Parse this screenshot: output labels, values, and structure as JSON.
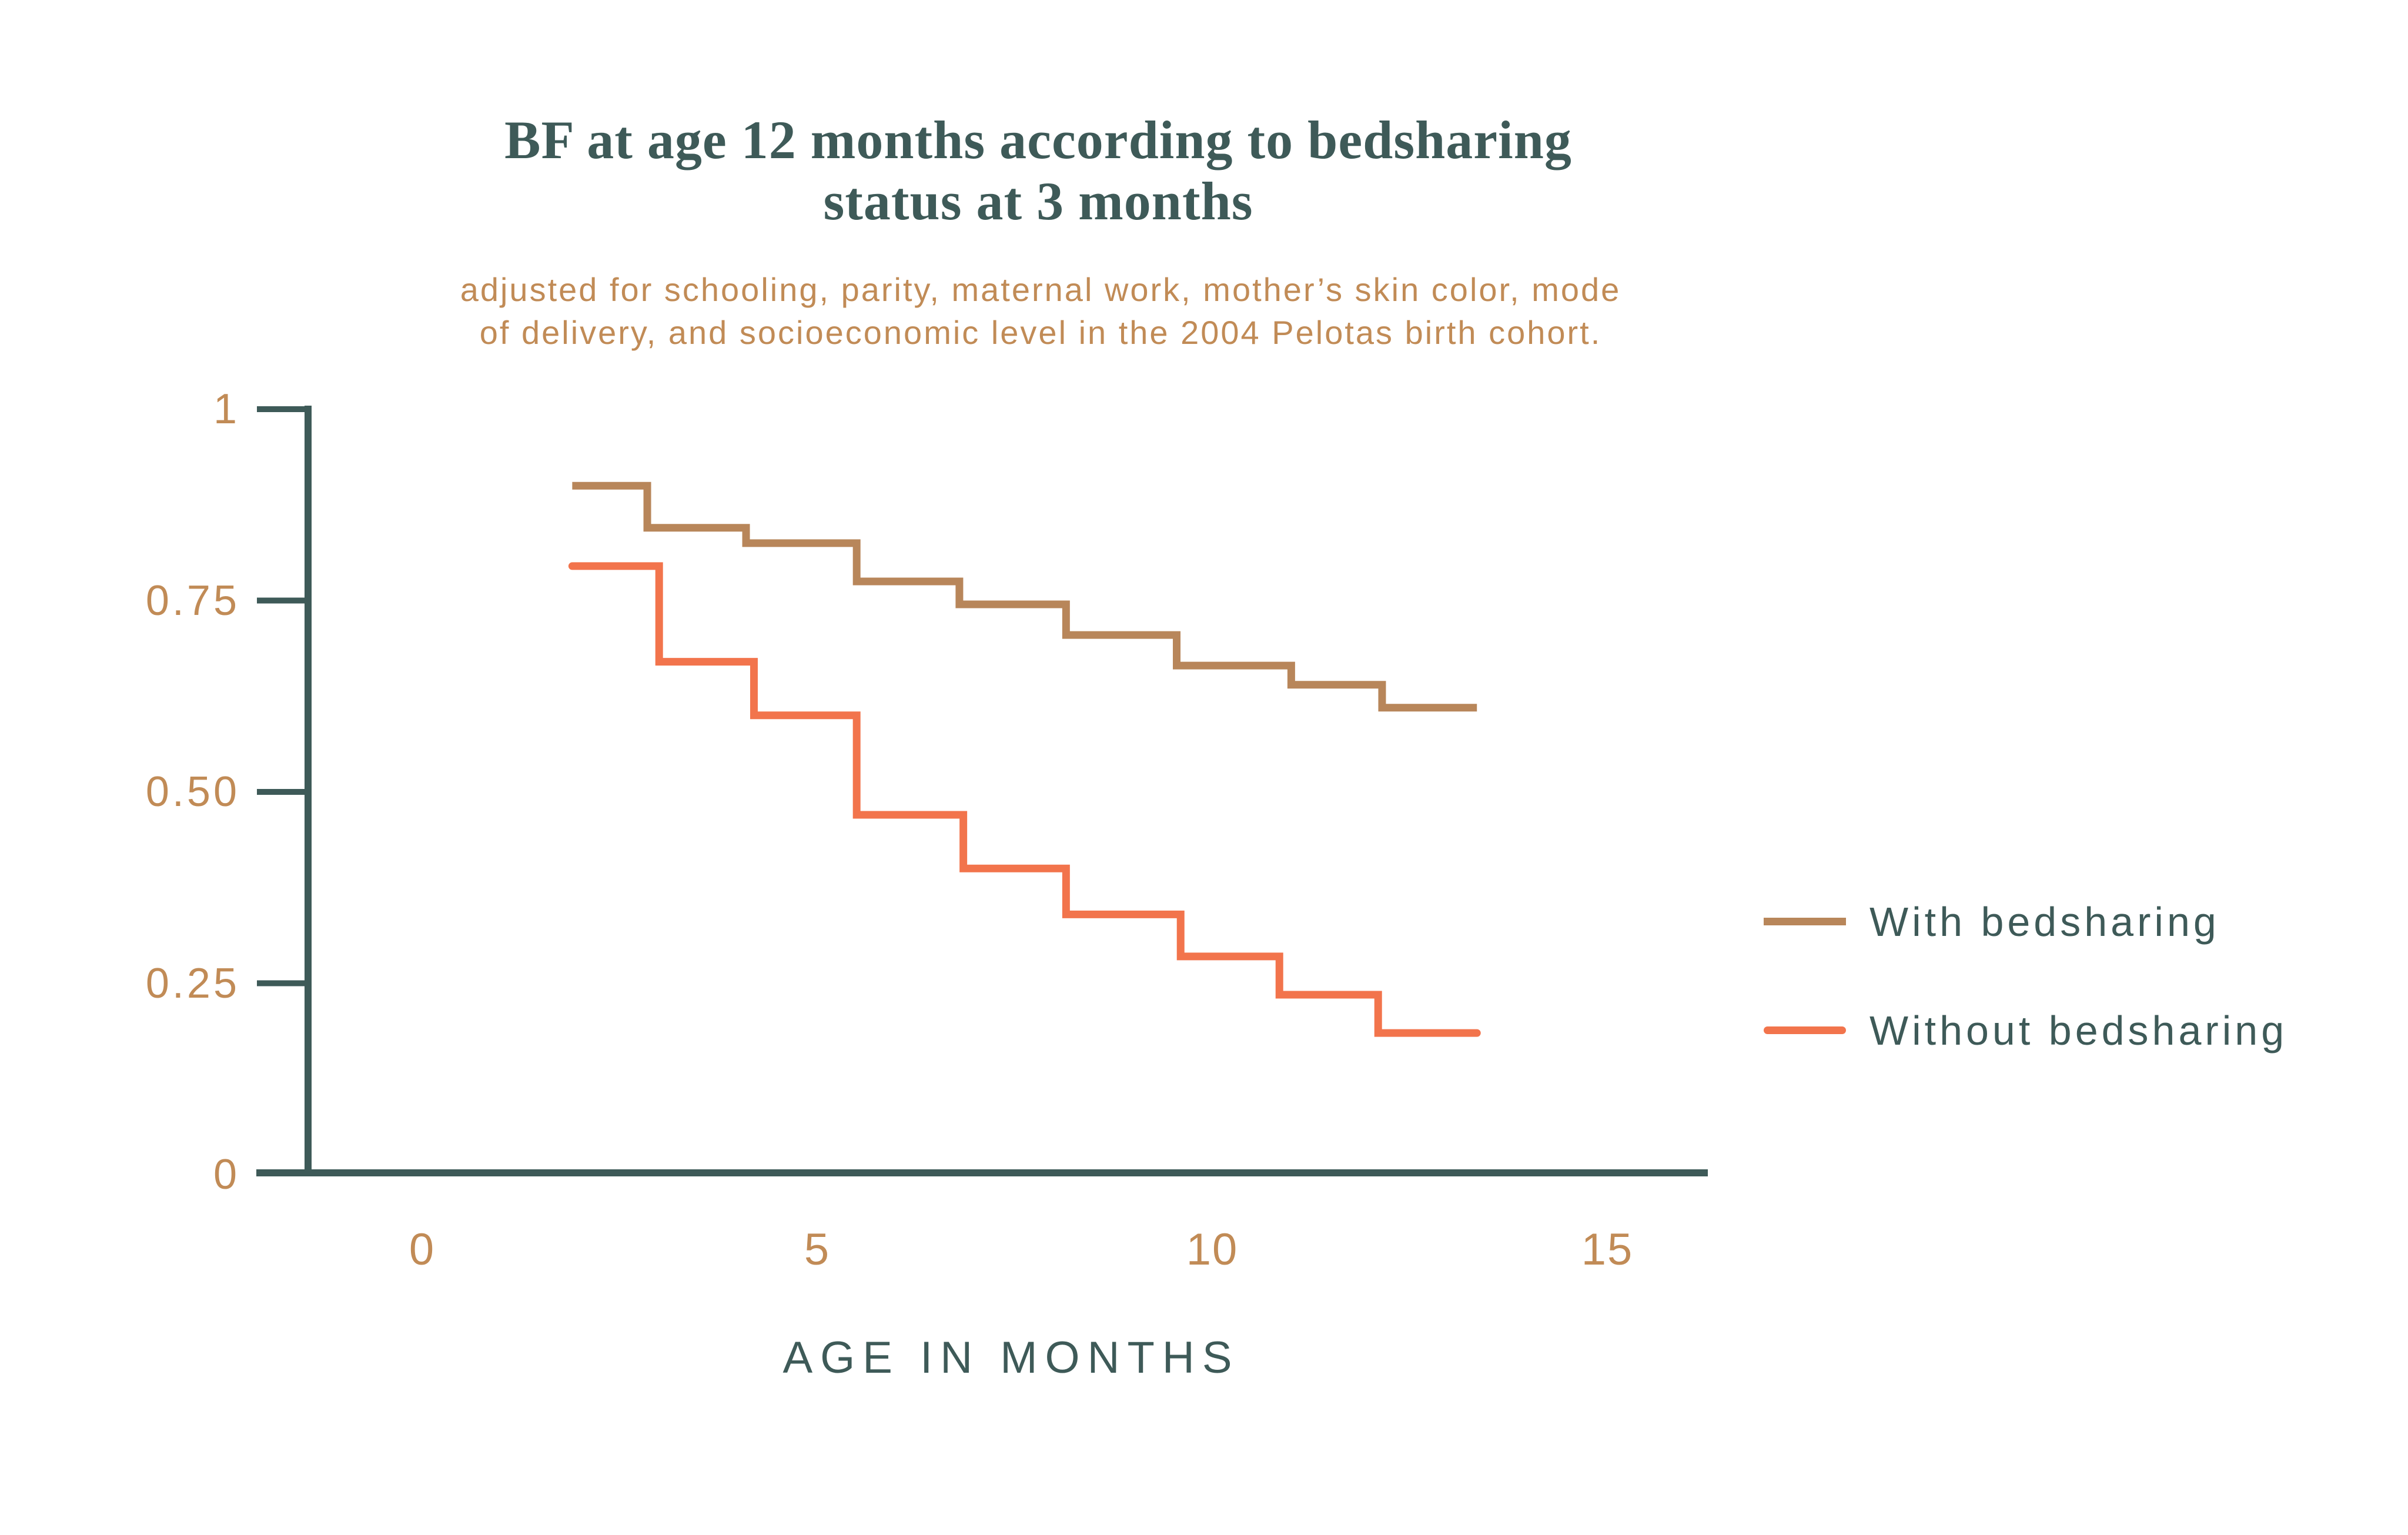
{
  "title": {
    "line1": "BF at age 12 months according to bedsharing",
    "line2": "status at 3 months"
  },
  "subtitle": {
    "line1": "adjusted for schooling, parity, maternal work, mother’s skin color, mode",
    "line2": "of delivery, and socioeconomic level in the 2004 Pelotas birth cohort."
  },
  "colors": {
    "background": "#FFFFFF",
    "ink_slate": "#3E5A58",
    "ink_tan": "#C18B56",
    "line_with": "#B8865A",
    "line_without": "#F2744C"
  },
  "legend": {
    "items": [
      {
        "label": "With bedsharing",
        "color": "#B8865A"
      },
      {
        "label": "Without bedsharing",
        "color": "#F2744C"
      }
    ]
  },
  "chart_data": {
    "type": "line",
    "subtype": "step",
    "title": "BF at age 12 months according to bedsharing status at 3 months",
    "subtitle": "adjusted for schooling, parity, maternal work, mother’s skin color, mode of delivery, and socioeconomic level in the 2004 Pelotas birth cohort.",
    "xlabel": "AGE IN MONTHS",
    "ylabel": "",
    "xlim": [
      -2.1,
      16.3
    ],
    "ylim": [
      0,
      1
    ],
    "grid": false,
    "legend_position": "center-right",
    "x_ticks": [
      0,
      5,
      10,
      15
    ],
    "x_tick_labels": [
      "0",
      "5",
      "10",
      "15"
    ],
    "y_ticks": [
      0,
      0.25,
      0.5,
      0.75,
      1
    ],
    "y_tick_labels": [
      "0",
      "0.25",
      "0.50",
      "0.75",
      "1"
    ],
    "series": [
      {
        "name": "With bedsharing",
        "color": "#B8865A",
        "linecap": "butt",
        "points": [
          [
            1.9,
            0.9
          ],
          [
            2.85,
            0.9
          ],
          [
            2.85,
            0.845
          ],
          [
            4.1,
            0.845
          ],
          [
            4.1,
            0.825
          ],
          [
            5.5,
            0.825
          ],
          [
            5.5,
            0.775
          ],
          [
            6.8,
            0.775
          ],
          [
            6.8,
            0.745
          ],
          [
            8.15,
            0.745
          ],
          [
            8.15,
            0.705
          ],
          [
            9.55,
            0.705
          ],
          [
            9.55,
            0.665
          ],
          [
            11.0,
            0.665
          ],
          [
            11.0,
            0.64
          ],
          [
            12.15,
            0.64
          ],
          [
            12.15,
            0.61
          ],
          [
            13.35,
            0.61
          ]
        ]
      },
      {
        "name": "Without bedsharing",
        "color": "#F2744C",
        "linecap": "round",
        "points": [
          [
            1.9,
            0.795
          ],
          [
            3.0,
            0.795
          ],
          [
            3.0,
            0.67
          ],
          [
            4.2,
            0.67
          ],
          [
            4.2,
            0.6
          ],
          [
            5.5,
            0.6
          ],
          [
            5.5,
            0.47
          ],
          [
            6.85,
            0.47
          ],
          [
            6.85,
            0.4
          ],
          [
            8.15,
            0.4
          ],
          [
            8.15,
            0.34
          ],
          [
            9.6,
            0.34
          ],
          [
            9.6,
            0.285
          ],
          [
            10.85,
            0.285
          ],
          [
            10.85,
            0.235
          ],
          [
            12.1,
            0.235
          ],
          [
            12.1,
            0.185
          ],
          [
            13.35,
            0.185
          ]
        ]
      }
    ]
  }
}
